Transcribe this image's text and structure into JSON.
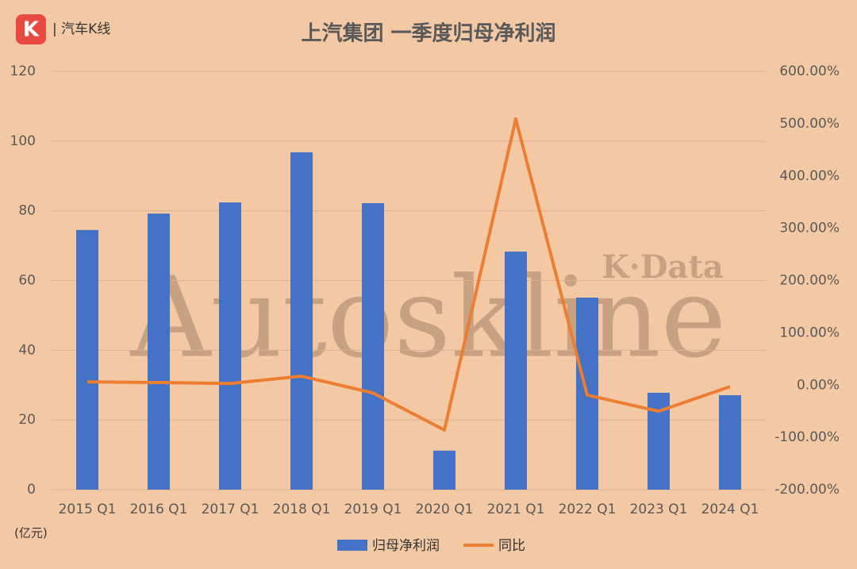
{
  "chart_data": {
    "type": "bar_line",
    "brand": "| 汽车K线",
    "logo": "K",
    "title": "上汽集团 一季度归母净利润",
    "watermark": "Autoskline",
    "watermark_sub": "K·Data",
    "unit_label": "(亿元)",
    "categories": [
      "2015 Q1",
      "2016 Q1",
      "2017 Q1",
      "2018 Q1",
      "2019 Q1",
      "2020 Q1",
      "2021 Q1",
      "2022 Q1",
      "2023 Q1",
      "2024 Q1"
    ],
    "series": [
      {
        "name": "归母净利润",
        "color": "#4472c4",
        "type": "bar",
        "values": [
          74.5,
          79.2,
          82.4,
          96.8,
          82.2,
          11.2,
          68.3,
          55.1,
          27.8,
          27.1
        ]
      },
      {
        "name": "同比",
        "color": "#ed7d31",
        "type": "line",
        "axis": "y2",
        "values": [
          6,
          5,
          3,
          17,
          -15,
          -86,
          509,
          -19,
          -50,
          -3
        ]
      }
    ],
    "ylim": [
      0,
      120
    ],
    "yticks": [
      0,
      20,
      40,
      60,
      80,
      100,
      120
    ],
    "y2lim": [
      -200,
      600
    ],
    "y2ticks": [
      {
        "value": -200,
        "label": "-200.00%"
      },
      {
        "value": -100,
        "label": "-100.00%"
      },
      {
        "value": 0,
        "label": "0.00%"
      },
      {
        "value": 100,
        "label": "100.00%"
      },
      {
        "value": 200,
        "label": "200.00%"
      },
      {
        "value": 300,
        "label": "300.00%"
      },
      {
        "value": 400,
        "label": "400.00%"
      },
      {
        "value": 500,
        "label": "500.00%"
      },
      {
        "value": 600,
        "label": "600.00%"
      }
    ],
    "grid": true,
    "legend": "bottom"
  }
}
